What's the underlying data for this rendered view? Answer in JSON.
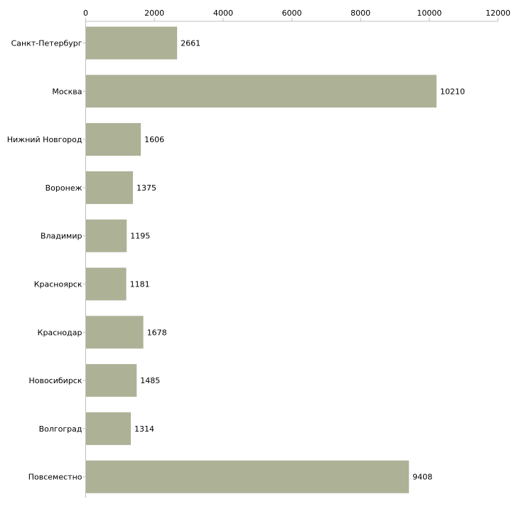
{
  "chart_data": {
    "type": "bar",
    "orientation": "horizontal",
    "title": "",
    "xlabel": "",
    "ylabel": "",
    "xlim": [
      0,
      12000
    ],
    "x_ticks": [
      0,
      2000,
      4000,
      6000,
      8000,
      10000,
      12000
    ],
    "x_tick_labels": [
      "0",
      "2000",
      "4000",
      "6000",
      "8000",
      "10000",
      "12000"
    ],
    "grid": false,
    "categories": [
      "Санкт-Петербург",
      "Москва",
      "Нижний Новгород",
      "Воронеж",
      "Владимир",
      "Красноярск",
      "Краснодар",
      "Новосибирск",
      "Волгоград",
      "Повсеместно"
    ],
    "values": [
      2661,
      10210,
      1606,
      1375,
      1195,
      1181,
      1678,
      1485,
      1314,
      9408
    ],
    "value_labels": [
      "2661",
      "10210",
      "1606",
      "1375",
      "1195",
      "1181",
      "1678",
      "1485",
      "1314",
      "9408"
    ],
    "bar_color": "#adb297",
    "axis_color": "#bfbfbf"
  }
}
